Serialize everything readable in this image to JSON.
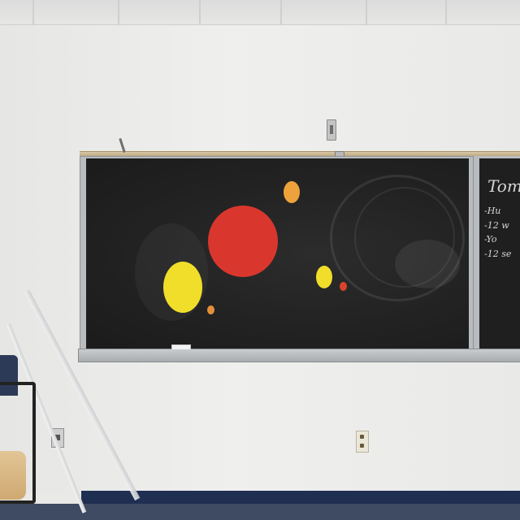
{
  "scene": {
    "description_items": [
      "ceiling",
      "wall",
      "map-rail",
      "chalkboard",
      "second-chalkboard",
      "chalk-tray",
      "wall-outlets",
      "chair"
    ],
    "colors": {
      "wall": "#e9e9e7",
      "board": "#222222",
      "frame": "#b9bcbf",
      "baseboard": "#1f2f52",
      "sun": "#d9372e",
      "yellow_planet": "#f1de2a",
      "orange_planet": "#eea23b",
      "small_orange": "#e58f3a",
      "small_red": "#d8432c"
    }
  },
  "second_board": {
    "lines": [
      "Tom",
      "-Hu",
      "-12 w",
      "-Yo",
      "-12 se"
    ]
  }
}
